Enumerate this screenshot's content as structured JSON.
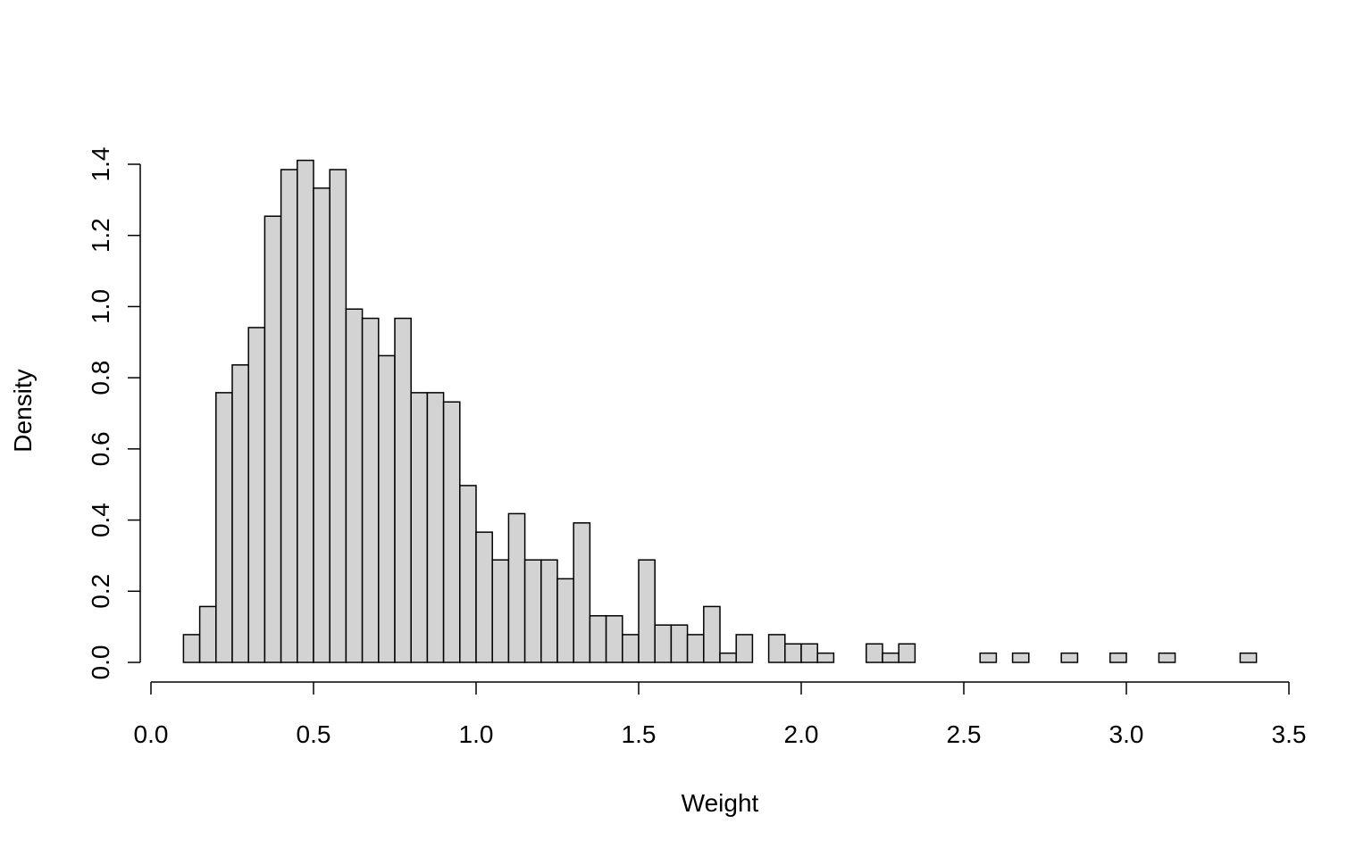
{
  "chart_data": {
    "type": "bar",
    "subtype": "histogram",
    "title": "",
    "xlabel": "Weight",
    "ylabel": "Density",
    "xlim": [
      0.0,
      3.5
    ],
    "ylim": [
      0.0,
      1.4
    ],
    "x_ticks": [
      "0.0",
      "0.5",
      "1.0",
      "1.5",
      "2.0",
      "2.5",
      "3.0",
      "3.5"
    ],
    "y_ticks": [
      "0.0",
      "0.2",
      "0.4",
      "0.6",
      "0.8",
      "1.0",
      "1.2",
      "1.4"
    ],
    "bin_width": 0.05,
    "bins_start": 0.1,
    "values": [
      0.078,
      0.157,
      0.758,
      0.836,
      0.941,
      1.254,
      1.385,
      1.411,
      1.333,
      1.385,
      0.993,
      0.967,
      0.862,
      0.967,
      0.758,
      0.758,
      0.732,
      0.497,
      0.366,
      0.288,
      0.418,
      0.288,
      0.288,
      0.235,
      0.392,
      0.131,
      0.131,
      0.078,
      0.288,
      0.105,
      0.105,
      0.078,
      0.157,
      0.026,
      0.078,
      0.0,
      0.078,
      0.052,
      0.052,
      0.026,
      0.0,
      0.0,
      0.052,
      0.026,
      0.052,
      0.0,
      0.0,
      0.0,
      0.0,
      0.026,
      0.0,
      0.026,
      0.0,
      0.0,
      0.026,
      0.0,
      0.0,
      0.026,
      0.0,
      0.0,
      0.026,
      0.0,
      0.0,
      0.0,
      0.0,
      0.026
    ],
    "grid": false,
    "legend": "none",
    "bar_fill": "#d3d3d3",
    "bar_stroke": "#000000"
  }
}
